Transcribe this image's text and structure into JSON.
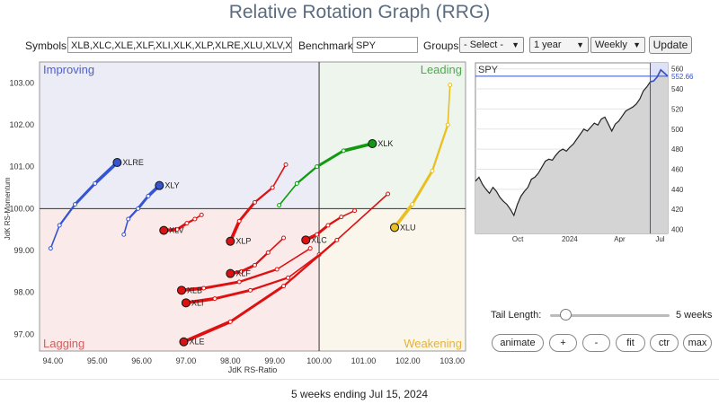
{
  "app": {
    "title": "Relative Rotation Graph (RRG)"
  },
  "controls": {
    "symbols_label": "Symbols:",
    "symbols_value": "XLB,XLC,XLE,XLF,XLI,XLK,XLP,XLRE,XLU,XLV,XLY",
    "benchmark_label": "Benchmark:",
    "benchmark_value": "SPY",
    "groups_label": "Groups:",
    "groups_value": "- Select -",
    "period_value": "1 year",
    "frequency_value": "Weekly",
    "update_label": "Update"
  },
  "chart_data": [
    {
      "type": "scatter",
      "xlabel": "JdK RS-Ratio",
      "ylabel": "JdK RS-Momentum",
      "xlim": [
        93.7,
        103.3
      ],
      "ylim": [
        96.6,
        103.5
      ],
      "x_ticks": [
        "94.00",
        "95.00",
        "96.00",
        "97.00",
        "98.00",
        "99.00",
        "100.00",
        "101.00",
        "102.00",
        "103.00"
      ],
      "y_ticks": [
        "97.00",
        "98.00",
        "99.00",
        "100.00",
        "101.00",
        "102.00",
        "103.00"
      ],
      "center": [
        100,
        100
      ],
      "quadrants": [
        {
          "name": "Improving",
          "color": "#4a5fd6",
          "fill": "#ececf6"
        },
        {
          "name": "Leading",
          "color": "#4caa4c",
          "fill": "#edf5ec"
        },
        {
          "name": "Weakening",
          "color": "#e3b23c",
          "fill": "#faf6ec"
        },
        {
          "name": "Lagging",
          "color": "#d06060",
          "fill": "#faeaea"
        }
      ],
      "series": [
        {
          "name": "XLRE",
          "color": "#3555d0",
          "points": [
            [
              93.95,
              99.05
            ],
            [
              94.15,
              99.6
            ],
            [
              94.5,
              100.1
            ],
            [
              94.95,
              100.6
            ],
            [
              95.45,
              101.1
            ]
          ]
        },
        {
          "name": "XLY",
          "color": "#3555d0",
          "points": [
            [
              95.6,
              99.38
            ],
            [
              95.7,
              99.75
            ],
            [
              95.92,
              100.0
            ],
            [
              96.15,
              100.3
            ],
            [
              96.4,
              100.55
            ]
          ]
        },
        {
          "name": "XLV",
          "color": "#dd1111",
          "points": [
            [
              97.35,
              99.85
            ],
            [
              97.2,
              99.75
            ],
            [
              97.02,
              99.65
            ],
            [
              96.8,
              99.5
            ],
            [
              96.5,
              99.48
            ]
          ]
        },
        {
          "name": "XLP",
          "color": "#dd1111",
          "points": [
            [
              99.25,
              101.05
            ],
            [
              98.95,
              100.5
            ],
            [
              98.55,
              100.15
            ],
            [
              98.2,
              99.7
            ],
            [
              98.0,
              99.22
            ]
          ]
        },
        {
          "name": "XLK",
          "color": "#119911",
          "points": [
            [
              99.1,
              100.08
            ],
            [
              99.5,
              100.6
            ],
            [
              99.95,
              101.0
            ],
            [
              100.55,
              101.38
            ],
            [
              101.2,
              101.55
            ]
          ]
        },
        {
          "name": "XLC",
          "color": "#dd1111",
          "points": [
            [
              100.8,
              99.95
            ],
            [
              100.5,
              99.8
            ],
            [
              100.2,
              99.6
            ],
            [
              99.95,
              99.38
            ],
            [
              99.7,
              99.25
            ]
          ]
        },
        {
          "name": "XLU",
          "color": "#e8c020",
          "points": [
            [
              102.95,
              102.95
            ],
            [
              102.9,
              102.0
            ],
            [
              102.55,
              100.9
            ],
            [
              102.1,
              100.1
            ],
            [
              101.7,
              99.55
            ]
          ]
        },
        {
          "name": "XLI",
          "color": "#dd1111",
          "points": [
            [
              100.0,
              98.9
            ],
            [
              99.3,
              98.35
            ],
            [
              98.45,
              98.05
            ],
            [
              97.65,
              97.85
            ],
            [
              97.0,
              97.75
            ]
          ]
        },
        {
          "name": "XLB",
          "color": "#dd1111",
          "points": [
            [
              99.8,
              99.05
            ],
            [
              99.05,
              98.55
            ],
            [
              98.2,
              98.25
            ],
            [
              97.4,
              98.1
            ],
            [
              96.9,
              98.05
            ]
          ]
        },
        {
          "name": "XLF",
          "color": "#dd1111",
          "points": [
            [
              99.2,
              99.3
            ],
            [
              98.85,
              98.95
            ],
            [
              98.55,
              98.65
            ],
            [
              98.25,
              98.5
            ],
            [
              98.0,
              98.45
            ]
          ]
        },
        {
          "name": "XLE",
          "color": "#dd1111",
          "points": [
            [
              101.55,
              100.35
            ],
            [
              100.4,
              99.25
            ],
            [
              99.2,
              98.15
            ],
            [
              98.0,
              97.3
            ],
            [
              96.95,
              96.82
            ]
          ]
        }
      ]
    },
    {
      "type": "area",
      "title": "SPY",
      "last_value": "552.66",
      "x_ticks": [
        "Oct",
        "2024",
        "Apr",
        "Jul"
      ],
      "y_ticks": [
        "400",
        "420",
        "440",
        "460",
        "480",
        "500",
        "520",
        "540",
        "560"
      ],
      "ylim": [
        396,
        566
      ],
      "highlight_weeks": 5,
      "values": [
        448,
        452,
        445,
        440,
        436,
        442,
        438,
        432,
        428,
        425,
        420,
        414,
        425,
        433,
        438,
        442,
        450,
        452,
        456,
        462,
        468,
        470,
        469,
        474,
        478,
        480,
        478,
        482,
        485,
        490,
        495,
        500,
        498,
        502,
        506,
        504,
        510,
        512,
        505,
        498,
        505,
        508,
        513,
        518,
        520,
        522,
        525,
        530,
        538,
        542,
        547,
        548,
        552,
        559,
        556,
        552.66
      ]
    }
  ],
  "tail": {
    "label": "Tail Length:",
    "value": "5 weeks",
    "weeks": 5,
    "max_weeks": 52
  },
  "buttons": {
    "animate": "animate",
    "plus": "+",
    "minus": "-",
    "fit": "fit",
    "ctr": "ctr",
    "max": "max"
  },
  "footer": {
    "caption": "5 weeks ending Jul 15, 2024"
  }
}
